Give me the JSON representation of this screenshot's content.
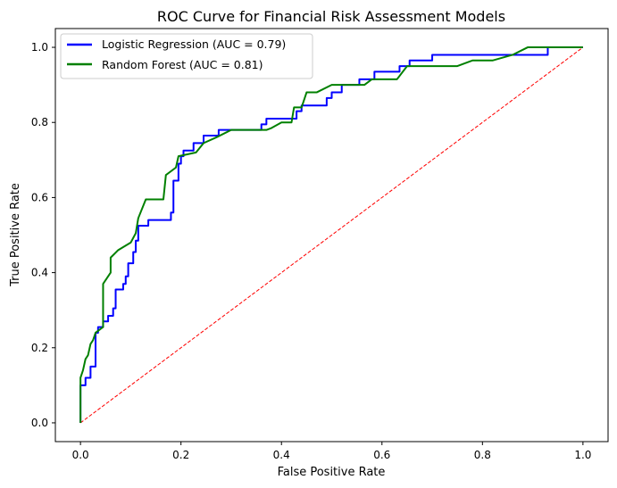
{
  "chart_data": {
    "type": "line",
    "title": "ROC Curve for Financial Risk Assessment Models",
    "xlabel": "False Positive Rate",
    "ylabel": "True Positive Rate",
    "xlim": [
      -0.05,
      1.05
    ],
    "ylim": [
      -0.05,
      1.05
    ],
    "xticks": [
      0.0,
      0.2,
      0.4,
      0.6,
      0.8,
      1.0
    ],
    "yticks": [
      0.0,
      0.2,
      0.4,
      0.6,
      0.8,
      1.0
    ],
    "xtick_labels": [
      "0.0",
      "0.2",
      "0.4",
      "0.6",
      "0.8",
      "1.0"
    ],
    "ytick_labels": [
      "0.0",
      "0.2",
      "0.4",
      "0.6",
      "0.8",
      "1.0"
    ],
    "grid": false,
    "legend_position": "upper-left",
    "series": [
      {
        "name": "Logistic Regression (AUC = 0.79)",
        "color": "#0000ff",
        "style": "solid",
        "x": [
          0.0,
          0.0,
          0.01,
          0.01,
          0.02,
          0.02,
          0.03,
          0.03,
          0.035,
          0.035,
          0.045,
          0.045,
          0.055,
          0.055,
          0.065,
          0.065,
          0.07,
          0.07,
          0.085,
          0.085,
          0.09,
          0.09,
          0.095,
          0.095,
          0.105,
          0.105,
          0.11,
          0.11,
          0.115,
          0.115,
          0.13,
          0.13,
          0.135,
          0.135,
          0.18,
          0.18,
          0.185,
          0.185,
          0.195,
          0.195,
          0.2,
          0.2,
          0.205,
          0.205,
          0.225,
          0.225,
          0.245,
          0.245,
          0.275,
          0.275,
          0.36,
          0.36,
          0.37,
          0.37,
          0.43,
          0.43,
          0.44,
          0.44,
          0.49,
          0.49,
          0.5,
          0.5,
          0.52,
          0.52,
          0.555,
          0.555,
          0.585,
          0.585,
          0.635,
          0.635,
          0.655,
          0.655,
          0.7,
          0.7,
          0.775,
          0.775,
          0.93,
          0.93,
          1.0
        ],
        "y": [
          0.0,
          0.1,
          0.1,
          0.12,
          0.12,
          0.15,
          0.15,
          0.24,
          0.24,
          0.255,
          0.255,
          0.27,
          0.27,
          0.285,
          0.285,
          0.305,
          0.305,
          0.355,
          0.355,
          0.37,
          0.37,
          0.39,
          0.39,
          0.425,
          0.425,
          0.455,
          0.455,
          0.485,
          0.485,
          0.525,
          0.525,
          0.525,
          0.525,
          0.54,
          0.54,
          0.56,
          0.56,
          0.645,
          0.645,
          0.69,
          0.69,
          0.71,
          0.71,
          0.725,
          0.725,
          0.745,
          0.745,
          0.765,
          0.765,
          0.78,
          0.78,
          0.795,
          0.795,
          0.81,
          0.81,
          0.83,
          0.83,
          0.845,
          0.845,
          0.865,
          0.865,
          0.88,
          0.88,
          0.9,
          0.9,
          0.915,
          0.915,
          0.935,
          0.935,
          0.95,
          0.95,
          0.965,
          0.965,
          0.98,
          0.98,
          0.98,
          0.98,
          1.0,
          1.0
        ]
      },
      {
        "name": "Random Forest (AUC = 0.81)",
        "color": "#008000",
        "style": "solid",
        "x": [
          0.0,
          0.0,
          0.005,
          0.01,
          0.015,
          0.02,
          0.025,
          0.03,
          0.045,
          0.045,
          0.06,
          0.06,
          0.075,
          0.1,
          0.11,
          0.115,
          0.13,
          0.165,
          0.17,
          0.19,
          0.195,
          0.195,
          0.23,
          0.245,
          0.27,
          0.3,
          0.37,
          0.38,
          0.4,
          0.42,
          0.425,
          0.44,
          0.45,
          0.47,
          0.5,
          0.565,
          0.58,
          0.63,
          0.65,
          0.68,
          0.75,
          0.78,
          0.82,
          0.86,
          0.89,
          1.0
        ],
        "y": [
          0.0,
          0.12,
          0.14,
          0.17,
          0.18,
          0.21,
          0.22,
          0.24,
          0.255,
          0.37,
          0.4,
          0.44,
          0.46,
          0.48,
          0.505,
          0.545,
          0.595,
          0.595,
          0.66,
          0.68,
          0.71,
          0.71,
          0.72,
          0.745,
          0.76,
          0.78,
          0.78,
          0.785,
          0.8,
          0.8,
          0.84,
          0.84,
          0.88,
          0.88,
          0.9,
          0.9,
          0.915,
          0.915,
          0.95,
          0.95,
          0.95,
          0.965,
          0.965,
          0.98,
          1.0,
          1.0
        ]
      },
      {
        "name": "",
        "color": "#ff0000",
        "style": "dashed",
        "x": [
          0.0,
          1.0
        ],
        "y": [
          0.0,
          1.0
        ]
      }
    ]
  }
}
